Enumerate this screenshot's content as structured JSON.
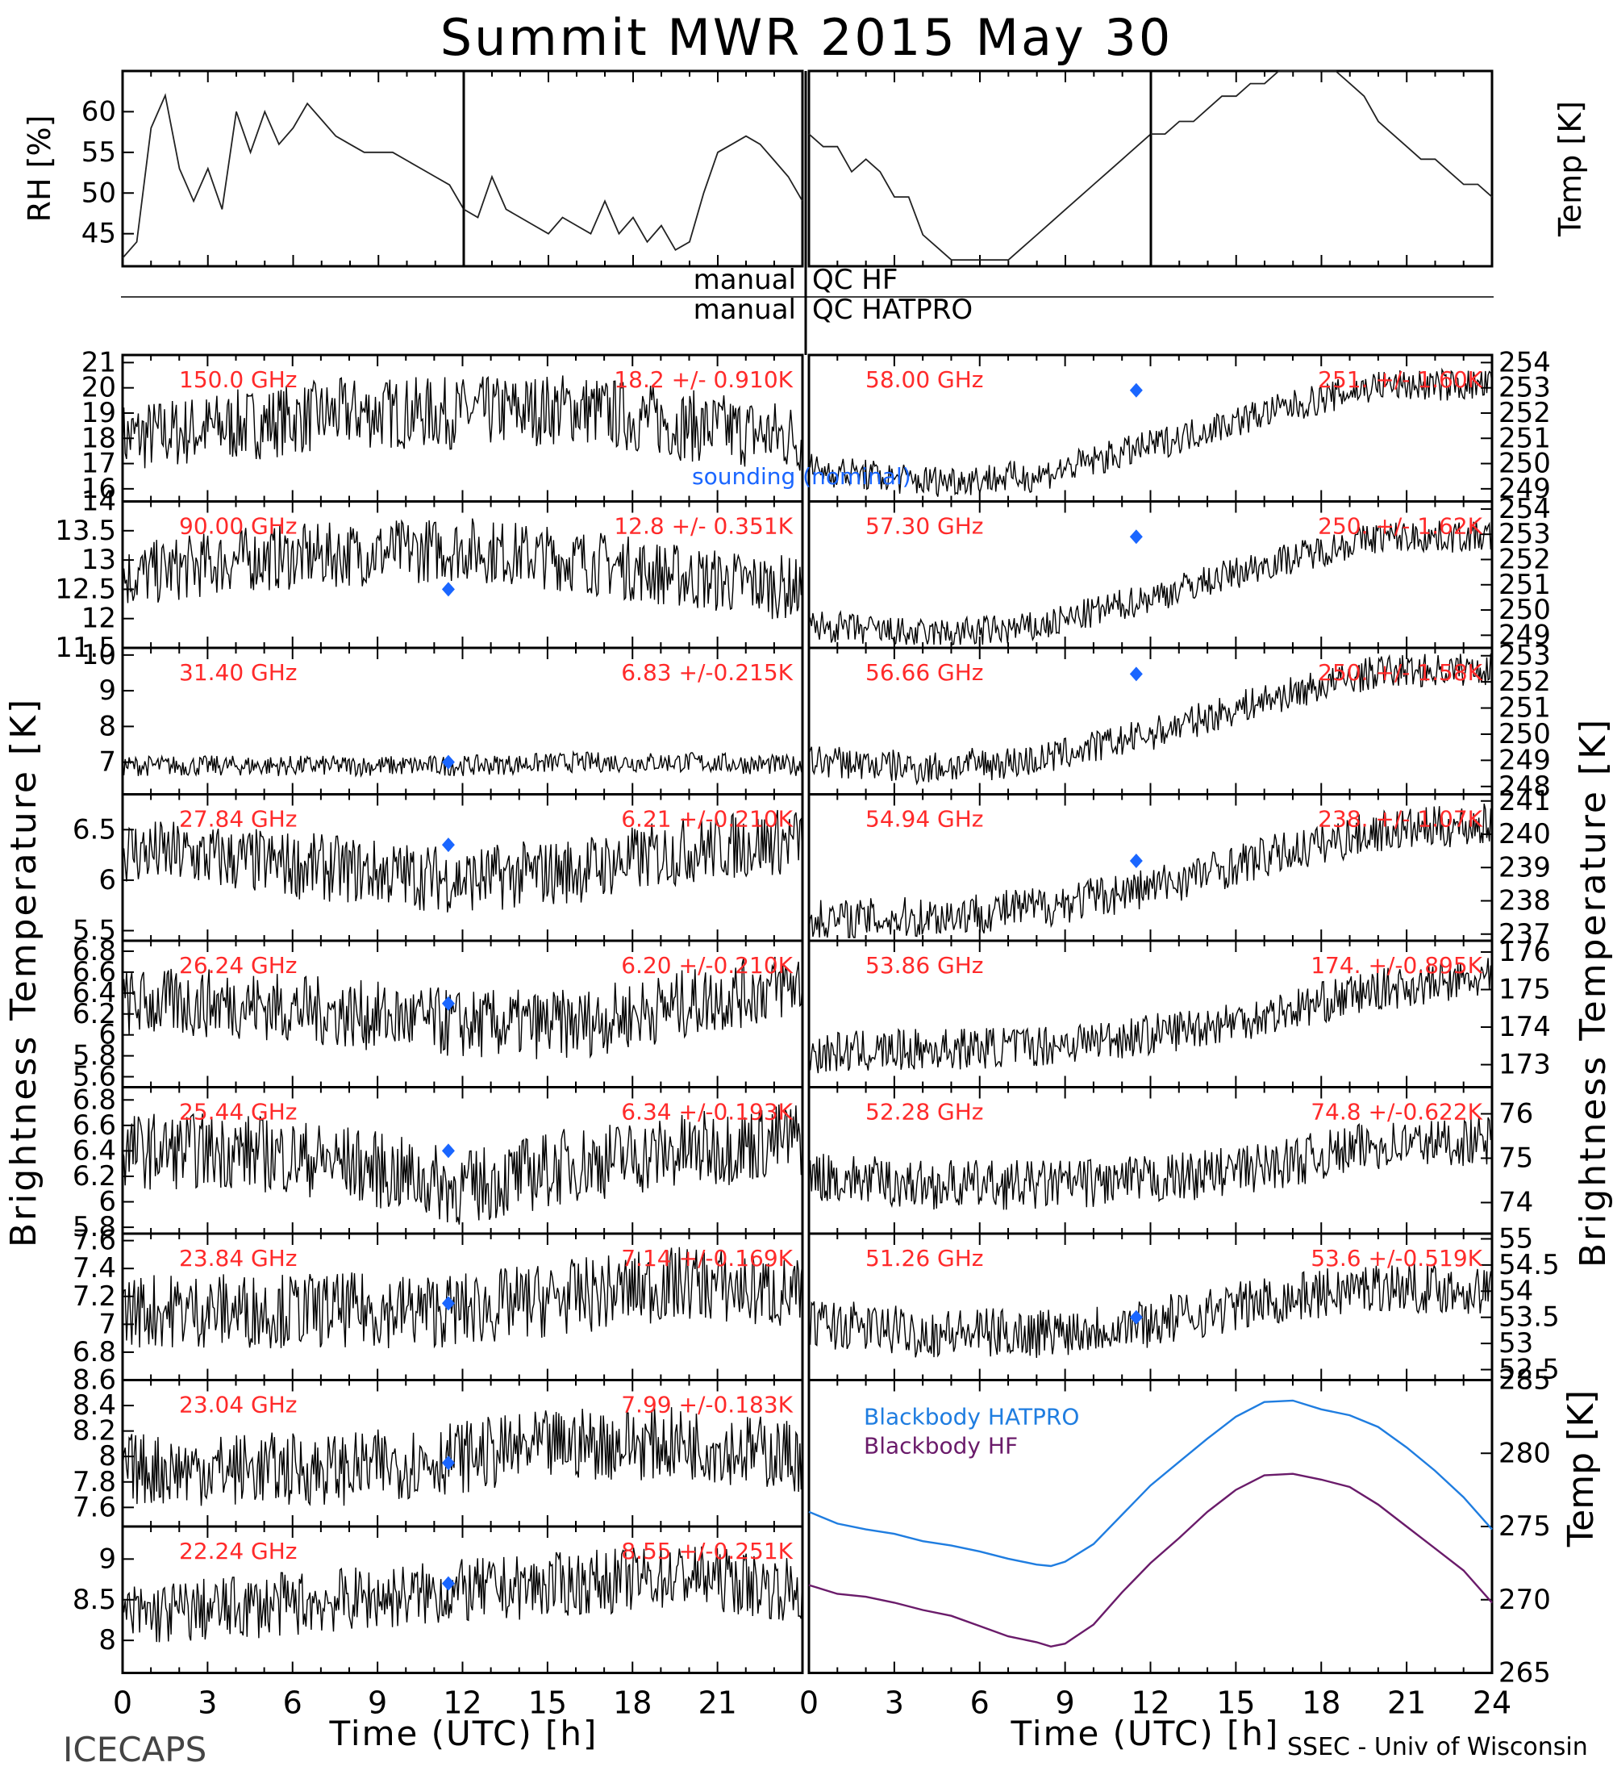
{
  "figure": {
    "title": "Summit MWR 2015 May 30",
    "bottom_left_text": "ICECAPS",
    "bottom_right_text": "SSEC - Univ of Wisconsin",
    "manual_qc_hf_left": "manual",
    "manual_qc_hf_right": "QC HF",
    "manual_qc_hatpro_left": "manual",
    "manual_qc_hatpro_right": "QC HATPRO",
    "left_ylabel": "Brightness Temperature [K]",
    "right_ylabel": "Brightness Temperature [K]",
    "xlabel": "Time (UTC) [h]",
    "sounding_label": "sounding (nominal)",
    "colors": {
      "channel_label": "#ff2a2a",
      "sounding": "#1a66ff",
      "bb_hatpro": "#1f7de0",
      "bb_hf": "#6a1b6a",
      "data": "#000000"
    }
  },
  "chart_data": [
    {
      "type": "line",
      "panel": "rh",
      "ylabel": "RH [%]",
      "ylim": [
        41,
        65
      ],
      "yticks": [
        45,
        50,
        55,
        60
      ],
      "xlim": [
        0,
        12
      ],
      "xticks": [
        0,
        3,
        6,
        9
      ],
      "series": [
        {
          "x": [
            0,
            0.5,
            1,
            1.5,
            2,
            2.5,
            3,
            3.5,
            4,
            4.5,
            5,
            5.5,
            6,
            6.5,
            7,
            7.5,
            8,
            8.5,
            9,
            9.5,
            10,
            10.5,
            11,
            11.5,
            12
          ],
          "y": [
            42,
            44,
            58,
            62,
            53,
            49,
            53,
            48,
            60,
            55,
            60,
            56,
            58,
            61,
            59,
            57,
            56,
            55,
            55,
            55,
            54,
            53,
            52,
            51,
            48
          ]
        }
      ]
    },
    {
      "type": "line",
      "panel": "rh",
      "ylim": [
        41,
        65
      ],
      "xlim": [
        12,
        24
      ],
      "xticks": [
        15,
        18,
        21
      ],
      "series": [
        {
          "x": [
            12,
            12.5,
            13,
            13.5,
            14,
            14.5,
            15,
            15.5,
            16,
            16.5,
            17,
            17.5,
            18,
            18.5,
            19,
            19.5,
            20,
            20.5,
            21,
            21.5,
            22,
            22.5,
            23,
            23.5,
            24
          ],
          "y": [
            48,
            47,
            52,
            48,
            47,
            46,
            45,
            47,
            46,
            45,
            49,
            45,
            47,
            44,
            46,
            43,
            44,
            50,
            55,
            56,
            57,
            56,
            54,
            52,
            49
          ]
        }
      ]
    },
    {
      "type": "line",
      "panel": "temp",
      "ylabel": "Temp [K]",
      "ylim": [
        245.5,
        261
      ],
      "yticks": [
        246,
        248,
        250,
        252,
        254,
        256,
        258,
        260
      ],
      "xlim": [
        0,
        12
      ],
      "xticks": [
        0,
        3,
        6,
        9
      ],
      "series": [
        {
          "x": [
            0,
            0.5,
            1,
            1.5,
            2,
            2.5,
            3,
            3.5,
            4,
            4.5,
            5,
            5.5,
            6,
            6.5,
            7,
            7.5,
            8,
            8.5,
            9,
            9.5,
            10,
            10.5,
            11,
            11.5,
            12
          ],
          "y": [
            256,
            255,
            255,
            253,
            254,
            253,
            251,
            251,
            248,
            247,
            246,
            246,
            246,
            246,
            246,
            247,
            248,
            249,
            250,
            251,
            252,
            253,
            254,
            255,
            256
          ]
        }
      ]
    },
    {
      "type": "line",
      "panel": "temp",
      "ylim": [
        245.5,
        261
      ],
      "xlim": [
        12,
        24
      ],
      "xticks": [
        15,
        18,
        21,
        24
      ],
      "series": [
        {
          "x": [
            12,
            12.5,
            13,
            13.5,
            14,
            14.5,
            15,
            15.5,
            16,
            16.5,
            17,
            17.5,
            18,
            18.5,
            19,
            19.5,
            20,
            20.5,
            21,
            21.5,
            22,
            22.5,
            23,
            23.5,
            24
          ],
          "y": [
            256,
            256,
            257,
            257,
            258,
            259,
            259,
            260,
            260,
            261,
            261,
            261,
            261,
            261,
            260,
            259,
            257,
            256,
            255,
            254,
            254,
            253,
            252,
            252,
            251
          ]
        }
      ]
    },
    {
      "type": "line",
      "panel": "left",
      "row": 0,
      "channel": "150.0 GHz",
      "stat": "18.2 +/- 0.910K",
      "ylim": [
        15.5,
        21.3
      ],
      "yticks": [
        16,
        17,
        18,
        19,
        20,
        21
      ],
      "mean": [
        18.0,
        18.5,
        19.0,
        19.0,
        19.2,
        18.5,
        18.0
      ],
      "amp": 0.9
    },
    {
      "type": "line",
      "panel": "left",
      "row": 1,
      "channel": "90.00 GHz",
      "stat": "12.8 +/- 0.351K",
      "ylim": [
        11.5,
        14.0
      ],
      "yticks": [
        11.5,
        12.0,
        12.5,
        13.0,
        13.5,
        14.0
      ],
      "mean": [
        12.7,
        13.0,
        13.1,
        13.2,
        13.0,
        12.7,
        12.5
      ],
      "amp": 0.35,
      "sounding": {
        "x": 11.5,
        "y": 12.5
      }
    },
    {
      "type": "line",
      "panel": "left",
      "row": 2,
      "channel": "31.40 GHz",
      "stat": "6.83 +/-0.215K",
      "ylim": [
        6.1,
        10.2
      ],
      "yticks": [
        7,
        8,
        9,
        10
      ],
      "mean": [
        6.9,
        6.9,
        6.9,
        6.9,
        7.0,
        7.0,
        6.9
      ],
      "amp": 0.18,
      "sounding": {
        "x": 11.5,
        "y": 7.0
      }
    },
    {
      "type": "line",
      "panel": "left",
      "row": 3,
      "channel": "27.84 GHz",
      "stat": "6.21 +/-0.210K",
      "ylim": [
        5.4,
        6.85
      ],
      "yticks": [
        5.5,
        6.0,
        6.5
      ],
      "mean": [
        6.3,
        6.2,
        6.1,
        6.0,
        6.1,
        6.3,
        6.4
      ],
      "amp": 0.21,
      "sounding": {
        "x": 11.5,
        "y": 6.35
      }
    },
    {
      "type": "line",
      "panel": "left",
      "row": 4,
      "channel": "26.24 GHz",
      "stat": "6.20 +/-0.210K",
      "ylim": [
        5.5,
        6.9
      ],
      "yticks": [
        5.6,
        5.8,
        6.0,
        6.2,
        6.4,
        6.6,
        6.8
      ],
      "mean": [
        6.3,
        6.3,
        6.2,
        6.1,
        6.1,
        6.3,
        6.5
      ],
      "amp": 0.21,
      "sounding": {
        "x": 11.5,
        "y": 6.3
      }
    },
    {
      "type": "line",
      "panel": "left",
      "row": 5,
      "channel": "25.44 GHz",
      "stat": "6.34 +/-0.193K",
      "ylim": [
        5.75,
        6.9
      ],
      "yticks": [
        5.8,
        6.0,
        6.2,
        6.4,
        6.6,
        6.8
      ],
      "mean": [
        6.4,
        6.4,
        6.3,
        6.1,
        6.3,
        6.4,
        6.5
      ],
      "amp": 0.19,
      "sounding": {
        "x": 11.5,
        "y": 6.4
      }
    },
    {
      "type": "line",
      "panel": "left",
      "row": 6,
      "channel": "23.84 GHz",
      "stat": "7.14 +/-0.169K",
      "ylim": [
        6.6,
        7.65
      ],
      "yticks": [
        6.8,
        7.0,
        7.2,
        7.4,
        7.6
      ],
      "mean": [
        7.1,
        7.1,
        7.1,
        7.1,
        7.2,
        7.3,
        7.2
      ],
      "amp": 0.17,
      "sounding": {
        "x": 11.5,
        "y": 7.15
      }
    },
    {
      "type": "line",
      "panel": "left",
      "row": 7,
      "channel": "23.04 GHz",
      "stat": "7.99 +/-0.183K",
      "ylim": [
        7.45,
        8.6
      ],
      "yticks": [
        7.6,
        7.8,
        8.0,
        8.2,
        8.4,
        8.6
      ],
      "mean": [
        7.9,
        7.9,
        7.9,
        8.0,
        8.1,
        8.1,
        8.0
      ],
      "amp": 0.18,
      "sounding": {
        "x": 11.5,
        "y": 7.95
      }
    },
    {
      "type": "line",
      "panel": "left",
      "row": 8,
      "channel": "22.24 GHz",
      "stat": "8.55 +/-0.251K",
      "ylim": [
        7.6,
        9.4
      ],
      "yticks": [
        8.0,
        8.5,
        9.0
      ],
      "mean": [
        8.3,
        8.4,
        8.5,
        8.6,
        8.7,
        8.8,
        8.6
      ],
      "amp": 0.25,
      "sounding": {
        "x": 11.5,
        "y": 8.7
      },
      "xlabel": "Time (UTC) [h]",
      "xticks": [
        0,
        3,
        6,
        9,
        12,
        15,
        18,
        21
      ]
    },
    {
      "type": "line",
      "panel": "right",
      "row": 0,
      "channel": "58.00 GHz",
      "stat": "251. +/- 1.60K",
      "ylim": [
        248.5,
        254.3
      ],
      "yticks": [
        249,
        250,
        251,
        252,
        253,
        254
      ],
      "mean": [
        249.8,
        249.3,
        249.5,
        250.7,
        252.0,
        253.1,
        253.1
      ],
      "amp": 0.4,
      "sounding": {
        "x": 11.5,
        "y": 252.9
      }
    },
    {
      "type": "line",
      "panel": "right",
      "row": 1,
      "channel": "57.30 GHz",
      "stat": "250. +/- 1.62K",
      "ylim": [
        248.5,
        254.3
      ],
      "yticks": [
        249,
        250,
        251,
        252,
        253,
        254
      ],
      "mean": [
        249.4,
        249.0,
        249.3,
        250.5,
        251.8,
        252.9,
        252.9
      ],
      "amp": 0.4,
      "sounding": {
        "x": 11.5,
        "y": 252.9
      }
    },
    {
      "type": "line",
      "panel": "right",
      "row": 2,
      "channel": "56.66 GHz",
      "stat": "250. +/- 1.58K",
      "ylim": [
        247.7,
        253.3
      ],
      "yticks": [
        248,
        249,
        250,
        251,
        252,
        253
      ],
      "mean": [
        249.0,
        248.7,
        249.0,
        250.0,
        251.3,
        252.4,
        252.5
      ],
      "amp": 0.4,
      "sounding": {
        "x": 11.5,
        "y": 252.3
      }
    },
    {
      "type": "line",
      "panel": "right",
      "row": 3,
      "channel": "54.94 GHz",
      "stat": "238. +/- 1.07K",
      "ylim": [
        236.8,
        241.2
      ],
      "yticks": [
        237,
        238,
        239,
        240,
        241
      ],
      "mean": [
        237.4,
        237.5,
        237.8,
        238.4,
        239.3,
        240.1,
        240.3
      ],
      "amp": 0.4,
      "sounding": {
        "x": 11.5,
        "y": 239.2
      }
    },
    {
      "type": "line",
      "panel": "right",
      "row": 4,
      "channel": "53.86 GHz",
      "stat": "174. +/-0.895K",
      "ylim": [
        172.4,
        176.3
      ],
      "yticks": [
        173,
        174,
        175,
        176
      ],
      "mean": [
        173.3,
        173.4,
        173.5,
        173.8,
        174.3,
        175.0,
        175.3
      ],
      "amp": 0.35
    },
    {
      "type": "line",
      "panel": "right",
      "row": 5,
      "channel": "52.28 GHz",
      "stat": "74.8 +/-0.622K",
      "ylim": [
        73.3,
        76.6
      ],
      "yticks": [
        74,
        75,
        76
      ],
      "mean": [
        74.6,
        74.4,
        74.4,
        74.5,
        74.8,
        75.3,
        75.4
      ],
      "amp": 0.35
    },
    {
      "type": "line",
      "panel": "right",
      "row": 6,
      "channel": "51.26 GHz",
      "stat": "53.6 +/-0.519K",
      "ylim": [
        52.3,
        55.1
      ],
      "yticks": [
        52.5,
        53.0,
        53.5,
        54.0,
        54.5,
        55.0
      ],
      "mean": [
        53.4,
        53.2,
        53.2,
        53.4,
        53.8,
        54.1,
        54.0
      ],
      "amp": 0.3,
      "sounding": {
        "x": 11.5,
        "y": 53.5
      }
    },
    {
      "type": "line",
      "panel": "blackbody",
      "ylabel": "Temp [K]",
      "ylim": [
        265,
        285
      ],
      "yticks": [
        265,
        270,
        275,
        280,
        285
      ],
      "xlim": [
        0,
        24
      ],
      "xticks": [
        0,
        3,
        6,
        9,
        12,
        15,
        18,
        21,
        24
      ],
      "xlabel": "Time (UTC) [h]",
      "series": [
        {
          "name": "Blackbody HATPRO",
          "x": [
            0,
            1,
            2,
            3,
            4,
            5,
            6,
            7,
            8,
            8.5,
            9,
            10,
            11,
            12,
            13,
            14,
            15,
            16,
            17,
            18,
            19,
            20,
            21,
            22,
            23,
            24
          ],
          "y": [
            276,
            275.2,
            274.8,
            274.5,
            274,
            273.7,
            273.3,
            272.8,
            272.4,
            272.3,
            272.6,
            273.8,
            275.8,
            277.8,
            279.4,
            281,
            282.5,
            283.5,
            283.6,
            283,
            282.6,
            281.8,
            280.4,
            278.8,
            277,
            274.8
          ]
        },
        {
          "name": "Blackbody HF",
          "x": [
            0,
            1,
            2,
            3,
            4,
            5,
            6,
            7,
            8,
            8.5,
            9,
            10,
            11,
            12,
            13,
            14,
            15,
            16,
            17,
            18,
            19,
            20,
            21,
            22,
            23,
            24
          ],
          "y": [
            271,
            270.4,
            270.2,
            269.8,
            269.3,
            268.9,
            268.2,
            267.5,
            267.1,
            266.8,
            267,
            268.3,
            270.5,
            272.5,
            274.2,
            276,
            277.5,
            278.5,
            278.6,
            278.2,
            277.7,
            276.5,
            275,
            273.5,
            272,
            269.8
          ]
        }
      ]
    }
  ]
}
